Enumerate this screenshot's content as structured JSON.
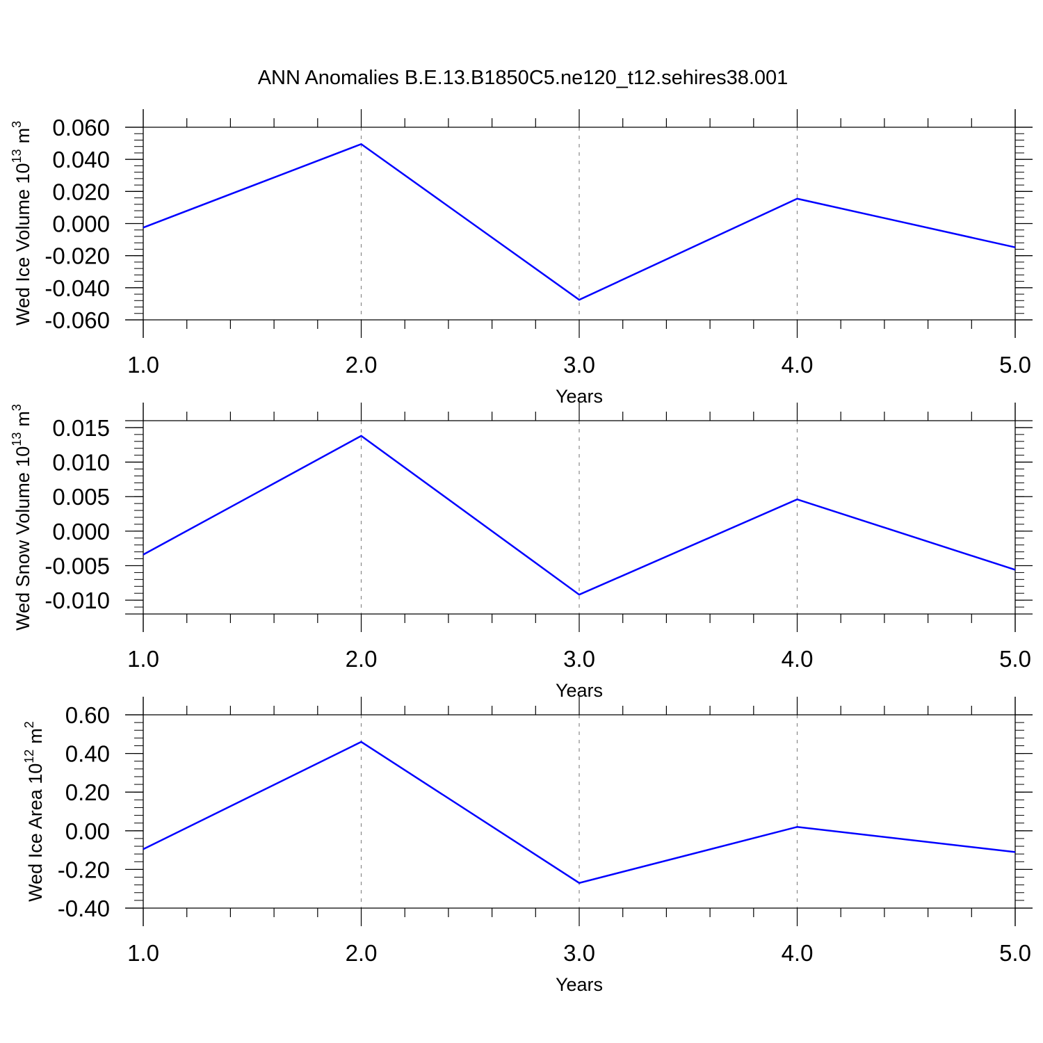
{
  "title": "ANN Anomalies B.E.13.B1850C5.ne120_t12.sehires38.001",
  "colors": {
    "line": "#0000ff",
    "axis": "#000000",
    "grid": "#888888"
  },
  "chart_data": [
    {
      "type": "line",
      "ylabel_text": "Wed Ice Volume 10",
      "ylabel_exponent": "13",
      "ylabel_unit": "m",
      "ylabel_unit_exponent": "3",
      "xlabel": "Years",
      "x_ticks": [
        "1.0",
        "2.0",
        "3.0",
        "4.0",
        "5.0"
      ],
      "y_ticks": [
        "0.060",
        "0.040",
        "0.020",
        "0.000",
        "-0.020",
        "-0.040",
        "-0.060"
      ],
      "x": [
        1,
        2,
        3,
        4,
        5
      ],
      "series": [
        {
          "values": [
            -0.0025,
            0.0495,
            -0.0475,
            0.0155,
            -0.0148
          ]
        }
      ],
      "xlim": [
        1,
        5
      ],
      "ylim": [
        -0.06,
        0.06
      ],
      "grid": "vertical dashed"
    },
    {
      "type": "line",
      "ylabel_text": "Wed Snow Volume 10",
      "ylabel_exponent": "13",
      "ylabel_unit": "m",
      "ylabel_unit_exponent": "3",
      "xlabel": "Years",
      "x_ticks": [
        "1.0",
        "2.0",
        "3.0",
        "4.0",
        "5.0"
      ],
      "y_ticks": [
        "0.015",
        "0.010",
        "0.005",
        "0.000",
        "-0.005",
        "-0.010"
      ],
      "x": [
        1,
        2,
        3,
        4,
        5
      ],
      "series": [
        {
          "values": [
            -0.0034,
            0.0138,
            -0.0092,
            0.0046,
            -0.0056
          ]
        }
      ],
      "xlim": [
        1,
        5
      ],
      "ylim": [
        -0.012,
        0.016
      ],
      "grid": "vertical dashed"
    },
    {
      "type": "line",
      "ylabel_text": "Wed Ice Area 10",
      "ylabel_exponent": "12",
      "ylabel_unit": "m",
      "ylabel_unit_exponent": "2",
      "xlabel": "Years",
      "x_ticks": [
        "1.0",
        "2.0",
        "3.0",
        "4.0",
        "5.0"
      ],
      "y_ticks": [
        "0.60",
        "0.40",
        "0.20",
        "0.00",
        "-0.20",
        "-0.40"
      ],
      "x": [
        1,
        2,
        3,
        4,
        5
      ],
      "series": [
        {
          "values": [
            -0.095,
            0.46,
            -0.27,
            0.02,
            -0.11
          ]
        }
      ],
      "xlim": [
        1,
        5
      ],
      "ylim": [
        -0.4,
        0.6
      ],
      "grid": "vertical dashed"
    }
  ]
}
